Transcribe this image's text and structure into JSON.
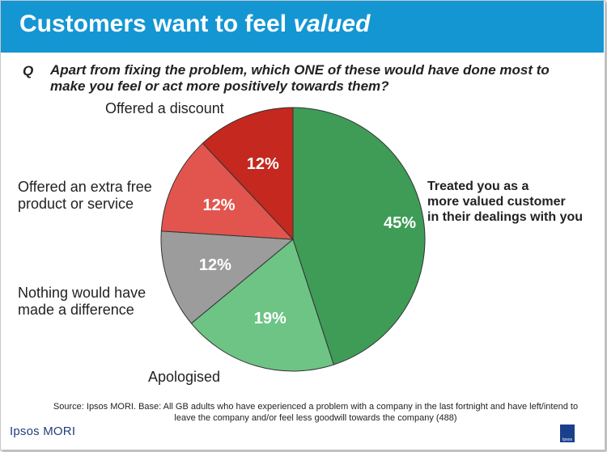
{
  "header": {
    "title_main": "Customers want to feel",
    "title_emphasis": "valued"
  },
  "question": {
    "marker": "Q",
    "text": "Apart from fixing the problem, which ONE of these would have done most to make you feel or act more positively towards them?"
  },
  "chart_data": {
    "type": "pie",
    "start_angle_deg": 0,
    "direction": "clockwise",
    "slices": [
      {
        "label": "Treated you as a\nmore valued customer\nin their dealings with you",
        "value": 45,
        "value_label": "45%",
        "color": "#3e9c57"
      },
      {
        "label": "Apologised",
        "value": 19,
        "value_label": "19%",
        "color": "#6dc485"
      },
      {
        "label": "Nothing would have\nmade a difference",
        "value": 12,
        "value_label": "12%",
        "color": "#9c9c9c"
      },
      {
        "label": "Offered an extra free\nproduct or service",
        "value": 12,
        "value_label": "12%",
        "color": "#e2554e"
      },
      {
        "label": "Offered a discount",
        "value": 12,
        "value_label": "12%",
        "color": "#c4281e"
      }
    ]
  },
  "footer": {
    "source": "Source: Ipsos MORI. Base: All GB adults who have experienced a problem with a company in the last fortnight and have left/intend to leave the company and/or feel less goodwill towards the company (488)",
    "logo": "Ipsos MORI",
    "badge": "Ipsos"
  }
}
